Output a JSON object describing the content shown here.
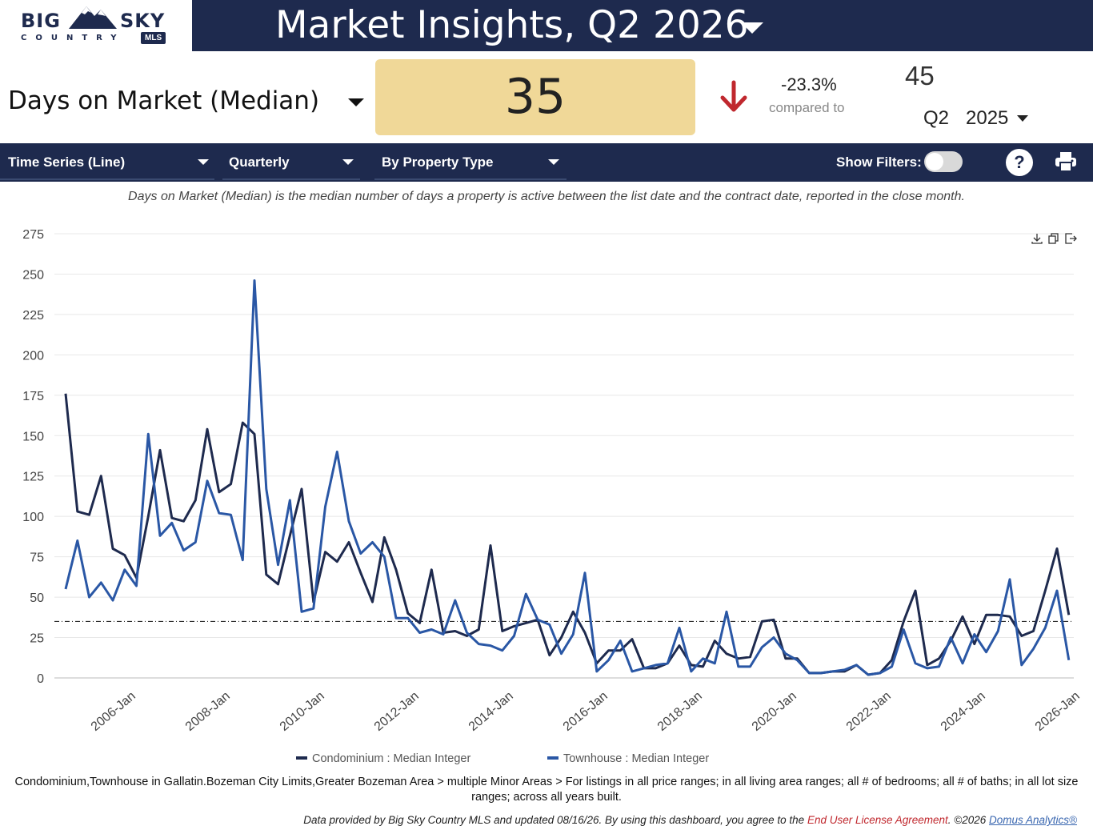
{
  "logo": {
    "top": "BIG SKY",
    "big": "BIG",
    "sky": "SKY",
    "country": "COUNTRY",
    "badge": "MLS"
  },
  "header": {
    "title": "Market Insights,  Q2 2026"
  },
  "metric": {
    "name": "Days on Market (Median)",
    "value": "35",
    "change": "-23.3%",
    "compared_label": "compared to",
    "previous_value": "45",
    "previous_quarter": "Q2",
    "previous_year": "2025",
    "direction": "down",
    "down_color": "#c0282e",
    "value_box_color": "#f0d898"
  },
  "toolbar": {
    "chart_type": "Time Series (Line)",
    "interval": "Quarterly",
    "grouping": "By Property Type",
    "show_filters_label": "Show Filters:",
    "show_filters": false,
    "help_icon": "help-icon",
    "print_icon": "print-icon"
  },
  "description": "Days on Market (Median) is the median number of days a property is active between the list date and the contract date, reported in the close month.",
  "chart_icons": [
    "download-icon",
    "copy-icon",
    "export-icon"
  ],
  "chart_data": {
    "type": "line",
    "title": "",
    "xlabel": "",
    "ylabel": "",
    "ylim": [
      0,
      275
    ],
    "yticks": [
      0,
      25,
      50,
      75,
      100,
      125,
      150,
      175,
      200,
      225,
      250,
      275
    ],
    "x_tick_labels": [
      "2006-Jan",
      "2008-Jan",
      "2010-Jan",
      "2012-Jan",
      "2014-Jan",
      "2016-Jan",
      "2018-Jan",
      "2020-Jan",
      "2022-Jan",
      "2024-Jan",
      "2026-Jan"
    ],
    "x_start": "2005-Q1",
    "x_interval": "quarter",
    "grid": true,
    "legend_position": "bottom",
    "reference_line": 35,
    "series": [
      {
        "name": "Condominium : Median Integer",
        "color": "#1e2a4e",
        "values": [
          176,
          103,
          101,
          125,
          80,
          76,
          62,
          100,
          141,
          99,
          97,
          110,
          154,
          115,
          120,
          158,
          151,
          64,
          58,
          88,
          117,
          47,
          78,
          72,
          84,
          65,
          47,
          87,
          67,
          40,
          34,
          67,
          28,
          29,
          26,
          30,
          82,
          29,
          32,
          34,
          36,
          14,
          25,
          41,
          28,
          9,
          17,
          17,
          24,
          6,
          6,
          9,
          20,
          8,
          7,
          23,
          15,
          12,
          13,
          35,
          36,
          12,
          12,
          3,
          3,
          4,
          4,
          8,
          2,
          3,
          11,
          35,
          54,
          8,
          12,
          23,
          38,
          21,
          39,
          39,
          38,
          26,
          29,
          54,
          80,
          39
        ]
      },
      {
        "name": "Townhouse : Median Integer",
        "color": "#2a57a5",
        "values": [
          55,
          85,
          50,
          59,
          48,
          67,
          57,
          151,
          88,
          96,
          79,
          84,
          122,
          102,
          101,
          73,
          246,
          117,
          70,
          110,
          41,
          43,
          106,
          140,
          97,
          77,
          84,
          75,
          37,
          37,
          28,
          30,
          27,
          48,
          28,
          21,
          20,
          17,
          26,
          52,
          36,
          33,
          15,
          27,
          65,
          4,
          11,
          23,
          4,
          6,
          8,
          9,
          31,
          4,
          12,
          9,
          41,
          7,
          7,
          19,
          25,
          15,
          11,
          3,
          3,
          4,
          5,
          8,
          2,
          3,
          7,
          30,
          9,
          6,
          7,
          25,
          9,
          27,
          16,
          29,
          61,
          8,
          18,
          31,
          54,
          11
        ]
      }
    ]
  },
  "footnote": "Condominium,Townhouse in Gallatin.Bozeman City Limits,Greater Bozeman Area > multiple Minor Areas > For listings in all price ranges; in all living area ranges; all # of bedrooms; all # of baths; in all lot size ranges; across all years built.",
  "credit": {
    "prefix": "Data provided by Big Sky Country MLS and updated 08/16/26.  By using this dashboard, you agree to the ",
    "link1": "End User License Agreement",
    "middle": ".  ©2026 ",
    "link2": "Domus Analytics®"
  }
}
